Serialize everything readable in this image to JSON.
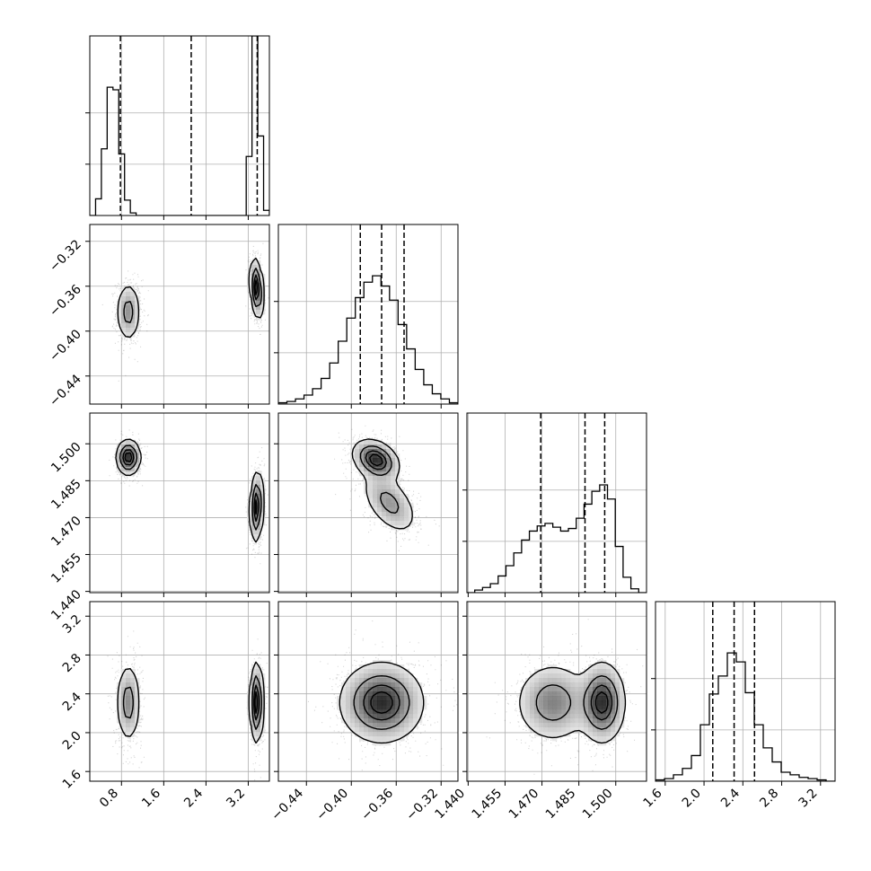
{
  "chart_data": {
    "type": "corner",
    "n_params": 4,
    "quantiles": [
      0.16,
      0.5,
      0.84
    ],
    "params": [
      {
        "range": [
          0.2,
          3.6
        ],
        "ticks": [
          0.8,
          1.6,
          2.4,
          3.2
        ],
        "tick_labels": [
          "0.8",
          "1.6",
          "2.4",
          "3.2"
        ],
        "modes": [
          {
            "mu": 0.93,
            "sd": 0.12,
            "w": 0.5
          },
          {
            "mu": 3.36,
            "sd": 0.06,
            "w": 0.5
          }
        ],
        "quantile_values": [
          0.78,
          2.12,
          3.37
        ]
      },
      {
        "range": [
          -0.465,
          -0.305
        ],
        "ticks": [
          -0.44,
          -0.4,
          -0.36,
          -0.32
        ],
        "tick_labels": [
          "−0.44",
          "−0.40",
          "−0.36",
          "−0.32"
        ],
        "modes": [
          {
            "mu": -0.373,
            "sd": 0.018,
            "w": 1.0
          }
        ],
        "quantile_values": [
          -0.392,
          -0.373,
          -0.353
        ]
      },
      {
        "range": [
          1.4395,
          1.5125
        ],
        "ticks": [
          1.44,
          1.455,
          1.47,
          1.485,
          1.5
        ],
        "tick_labels": [
          "1.440",
          "1.455",
          "1.470",
          "1.485",
          "1.500"
        ],
        "modes": [
          {
            "mu": 1.4745,
            "sd": 0.0075,
            "w": 0.5
          },
          {
            "mu": 1.4945,
            "sd": 0.0045,
            "w": 0.5
          }
        ],
        "quantile_values": [
          1.4695,
          1.4875,
          1.4955
        ]
      },
      {
        "range": [
          1.5,
          3.35
        ],
        "ticks": [
          1.6,
          2.0,
          2.4,
          2.8,
          3.2
        ],
        "tick_labels": [
          "1.6",
          "2.0",
          "2.4",
          "2.8",
          "3.2"
        ],
        "modes": [
          {
            "mu": 2.31,
            "sd": 0.21,
            "w": 1.0
          }
        ],
        "quantile_values": [
          2.09,
          2.31,
          2.52
        ]
      }
    ],
    "histograms": [
      [
        0.0,
        0.13,
        0.52,
        1.0,
        0.98,
        0.48,
        0.12,
        0.02,
        0.0,
        0.0,
        0.0,
        0.0,
        0.0,
        0.0,
        0.0,
        0.0,
        0.0,
        0.0,
        0.0,
        0.0,
        0.0,
        0.0,
        0.0,
        0.0,
        0.0,
        0.0,
        0.0,
        0.46,
        1.4,
        0.62,
        0.04
      ],
      [
        0.01,
        0.02,
        0.04,
        0.07,
        0.12,
        0.2,
        0.32,
        0.49,
        0.67,
        0.83,
        0.95,
        1.0,
        0.92,
        0.81,
        0.62,
        0.43,
        0.27,
        0.15,
        0.08,
        0.04,
        0.01
      ],
      [
        0.0,
        0.02,
        0.04,
        0.07,
        0.13,
        0.21,
        0.31,
        0.41,
        0.48,
        0.52,
        0.54,
        0.51,
        0.48,
        0.5,
        0.58,
        0.69,
        0.79,
        0.84,
        0.73,
        0.36,
        0.12,
        0.03,
        0.0
      ],
      [
        0.01,
        0.02,
        0.05,
        0.1,
        0.2,
        0.44,
        0.68,
        0.82,
        1.0,
        0.93,
        0.69,
        0.44,
        0.26,
        0.15,
        0.07,
        0.05,
        0.03,
        0.02,
        0.01,
        0.0
      ]
    ],
    "hist_ylim": [
      0,
      1.4
    ],
    "hist_yticks": [
      0.4,
      0.8
    ],
    "pairs": [
      {
        "x": 0,
        "y": 1,
        "clusters": [
          {
            "mx": 0.93,
            "my": -0.383,
            "sx": 0.11,
            "sy": 0.013,
            "r": 0.0,
            "w": 0.5
          },
          {
            "mx": 3.36,
            "my": -0.362,
            "sx": 0.06,
            "sy": 0.013,
            "r": -0.3,
            "w": 0.5
          }
        ]
      },
      {
        "x": 0,
        "y": 2,
        "clusters": [
          {
            "mx": 0.93,
            "my": 1.4945,
            "sx": 0.11,
            "sy": 0.0035,
            "r": 0.0,
            "w": 0.5
          },
          {
            "mx": 3.36,
            "my": 1.4745,
            "sx": 0.06,
            "sy": 0.007,
            "r": 0.15,
            "w": 0.5
          }
        ]
      },
      {
        "x": 1,
        "y": 2,
        "clusters": [
          {
            "mx": -0.378,
            "my": 1.4935,
            "sx": 0.01,
            "sy": 0.004,
            "r": -0.3,
            "w": 0.55
          },
          {
            "mx": -0.366,
            "my": 1.476,
            "sx": 0.012,
            "sy": 0.0062,
            "r": -0.5,
            "w": 0.45
          }
        ]
      },
      {
        "x": 0,
        "y": 3,
        "clusters": [
          {
            "mx": 0.93,
            "my": 2.31,
            "sx": 0.11,
            "sy": 0.2,
            "r": 0.0,
            "w": 0.5
          },
          {
            "mx": 3.36,
            "my": 2.31,
            "sx": 0.06,
            "sy": 0.2,
            "r": 0.0,
            "w": 0.5
          }
        ]
      },
      {
        "x": 1,
        "y": 3,
        "clusters": [
          {
            "mx": -0.373,
            "my": 2.31,
            "sx": 0.018,
            "sy": 0.2,
            "r": 0.0,
            "w": 1.0
          }
        ]
      },
      {
        "x": 2,
        "y": 3,
        "clusters": [
          {
            "mx": 1.4745,
            "my": 2.31,
            "sx": 0.0075,
            "sy": 0.2,
            "r": 0.0,
            "w": 0.5
          },
          {
            "mx": 1.4945,
            "my": 2.31,
            "sx": 0.0045,
            "sy": 0.2,
            "r": 0.0,
            "w": 0.5
          }
        ]
      }
    ],
    "contour_levels": [
      0.118,
      0.393,
      0.675,
      0.865
    ],
    "colors": {
      "line": "#000000",
      "grid": "#b0b0b0",
      "points": "#000000",
      "density": "#000000"
    }
  }
}
